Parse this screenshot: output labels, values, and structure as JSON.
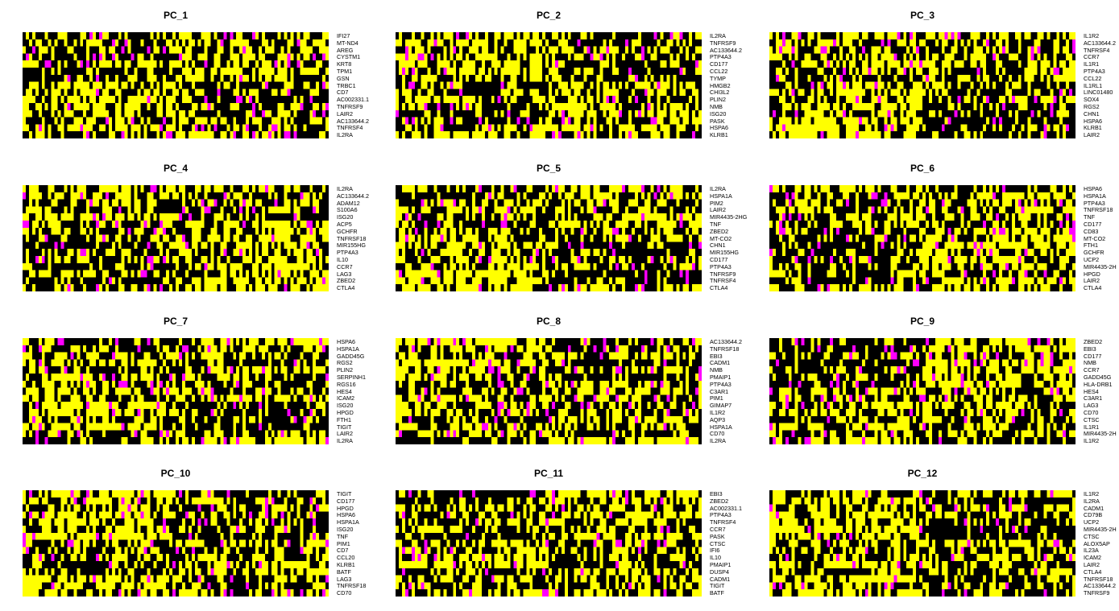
{
  "chart_data": [
    {
      "type": "heatmap",
      "title": "PC_1",
      "split": 0.5,
      "colormap": [
        "#000000",
        "#ff00ff",
        "#ffff00"
      ],
      "genes": [
        "IFI27",
        "MT-ND4",
        "AREG",
        "CYSTM1",
        "KRT8",
        "TPM1",
        "GSN",
        "TRBC1",
        "CD7",
        "AC002331.1",
        "TNFRSF9",
        "LAIR2",
        "AC133644.2",
        "TNFRSF4",
        "IL2RA"
      ]
    },
    {
      "type": "heatmap",
      "title": "PC_2",
      "split": 0.5,
      "colormap": [
        "#000000",
        "#ff00ff",
        "#ffff00"
      ],
      "genes": [
        "IL2RA",
        "TNFRSF9",
        "AC133644.2",
        "PTP4A3",
        "CD177",
        "CCL22",
        "TYMP",
        "HMGB2",
        "CHI3L2",
        "PLIN2",
        "NMB",
        "ISG20",
        "PASK",
        "HSPA6",
        "KLRB1"
      ]
    },
    {
      "type": "heatmap",
      "title": "PC_3",
      "split": 0.5,
      "colormap": [
        "#000000",
        "#ff00ff",
        "#ffff00"
      ],
      "genes": [
        "IL1R2",
        "AC133644.2",
        "TNFRSF4",
        "CCR7",
        "IL1R1",
        "PTP4A3",
        "CCL22",
        "IL1RL1",
        "LINC01480",
        "SOX4",
        "RGS2",
        "CHN1",
        "HSPA6",
        "KLRB1",
        "LAIR2"
      ]
    },
    {
      "type": "heatmap",
      "title": "PC_4",
      "split": 0.5,
      "colormap": [
        "#000000",
        "#ff00ff",
        "#ffff00"
      ],
      "genes": [
        "IL2RA",
        "AC133644.2",
        "ADAM12",
        "S100A6",
        "ISG20",
        "ACP5",
        "GCHFR",
        "TNFRSF18",
        "MIR155HG",
        "PTP4A3",
        "IL10",
        "CCR7",
        "LAG3",
        "ZBED2",
        "CTLA4"
      ]
    },
    {
      "type": "heatmap",
      "title": "PC_5",
      "split": 0.5,
      "colormap": [
        "#000000",
        "#ff00ff",
        "#ffff00"
      ],
      "genes": [
        "IL2RA",
        "HSPA1A",
        "PIM2",
        "LAIR2",
        "MIR4435-2HG",
        "TNF",
        "ZBED2",
        "MT-CO2",
        "CHN1",
        "MIR155HG",
        "CD177",
        "PTP4A3",
        "TNFRSF9",
        "TNFRSF4",
        "CTLA4"
      ]
    },
    {
      "type": "heatmap",
      "title": "PC_6",
      "split": 0.5,
      "colormap": [
        "#000000",
        "#ff00ff",
        "#ffff00"
      ],
      "genes": [
        "HSPA6",
        "HSPA1A",
        "PTP4A3",
        "TNFRSF18",
        "TNF",
        "CD177",
        "CD83",
        "MT-CO2",
        "FTH1",
        "GCHFR",
        "UCP2",
        "MIR4435-2H",
        "HPGD",
        "LAIR2",
        "CTLA4"
      ]
    },
    {
      "type": "heatmap",
      "title": "PC_7",
      "split": 0.5,
      "colormap": [
        "#000000",
        "#ff00ff",
        "#ffff00"
      ],
      "genes": [
        "HSPA6",
        "HSPA1A",
        "GADD45G",
        "RGS2",
        "PLIN2",
        "SERPINH1",
        "RGS16",
        "HES4",
        "ICAM2",
        "ISG20",
        "HPGD",
        "FTH1",
        "TIGIT",
        "LAIR2",
        "IL2RA"
      ]
    },
    {
      "type": "heatmap",
      "title": "PC_8",
      "split": 0.5,
      "colormap": [
        "#000000",
        "#ff00ff",
        "#ffff00"
      ],
      "genes": [
        "AC133644.2",
        "TNFRSF18",
        "EBI3",
        "CADM1",
        "NMB",
        "PMAIP1",
        "PTP4A3",
        "C3AR1",
        "PIM1",
        "GIMAP7",
        "IL1R2",
        "AQP3",
        "HSPA1A",
        "CD70",
        "IL2RA"
      ]
    },
    {
      "type": "heatmap",
      "title": "PC_9",
      "split": 0.5,
      "colormap": [
        "#000000",
        "#ff00ff",
        "#ffff00"
      ],
      "genes": [
        "ZBED2",
        "EBI3",
        "CD177",
        "NMB",
        "CCR7",
        "GADD45G",
        "HLA-DRB1",
        "HES4",
        "C3AR1",
        "LAG3",
        "CD70",
        "CTSC",
        "IL1R1",
        "MIR4435-2H",
        "IL1R2"
      ]
    },
    {
      "type": "heatmap",
      "title": "PC_10",
      "split": 0.5,
      "colormap": [
        "#000000",
        "#ff00ff",
        "#ffff00"
      ],
      "genes": [
        "TIGIT",
        "CD177",
        "HPGD",
        "HSPA6",
        "HSPA1A",
        "ISG20",
        "TNF",
        "PIM1",
        "CD7",
        "CCL20",
        "KLRB1",
        "BATF",
        "LAG3",
        "TNFRSF18",
        "CD70"
      ]
    },
    {
      "type": "heatmap",
      "title": "PC_11",
      "split": 0.5,
      "colormap": [
        "#000000",
        "#ff00ff",
        "#ffff00"
      ],
      "genes": [
        "EBI3",
        "ZBED2",
        "AC002331.1",
        "PTP4A3",
        "TNFRSF4",
        "CCR7",
        "PASK",
        "CTSC",
        "IFI6",
        "IL10",
        "PMAIP1",
        "DUSP4",
        "CADM1",
        "TIGIT",
        "BATF"
      ]
    },
    {
      "type": "heatmap",
      "title": "PC_12",
      "split": 0.5,
      "colormap": [
        "#000000",
        "#ff00ff",
        "#ffff00"
      ],
      "genes": [
        "IL1R2",
        "IL2RA",
        "CADM1",
        "CD79B",
        "UCP2",
        "MIR4435-2H",
        "CTSC",
        "ALOX5AP",
        "IL23A",
        "ICAM2",
        "LAIR2",
        "CTLA4",
        "TNFRSF18",
        "AC133644.2",
        "TNFRSF9"
      ]
    }
  ]
}
